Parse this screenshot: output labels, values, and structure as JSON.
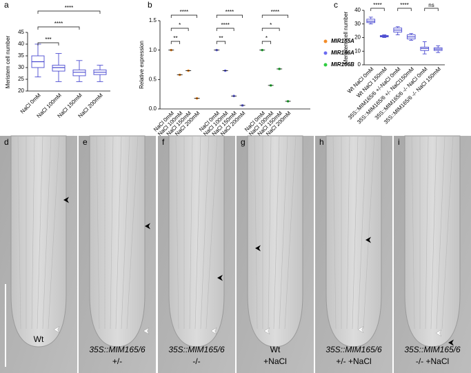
{
  "chart_data": [
    {
      "type": "box",
      "panel_label": "a",
      "ylabel": "Meristem cell number",
      "categories": [
        "NaCl 0mM",
        "NaCl 100mM",
        "NaCl 150mM",
        "NaCl 200mM"
      ],
      "color": "#4a4ad0",
      "min": [
        26,
        24,
        24,
        24
      ],
      "q1": [
        30,
        28.5,
        26.5,
        27
      ],
      "median": [
        32.5,
        30,
        28,
        28
      ],
      "q3": [
        35,
        31,
        29,
        29
      ],
      "max": [
        40,
        36,
        33,
        31
      ],
      "ylim": [
        20,
        45
      ],
      "yticks": [
        20,
        25,
        30,
        35,
        40,
        45
      ],
      "annotations": [
        {
          "from": 0,
          "to": 1,
          "text": "***"
        },
        {
          "from": 0,
          "to": 2,
          "text": "****"
        },
        {
          "from": 0,
          "to": 3,
          "text": "****"
        }
      ]
    },
    {
      "type": "dot",
      "panel_label": "b",
      "ylabel": "Relative expression",
      "categories": [
        "NaCl 0mM",
        "NaCl 100mM",
        "NaCl 150mM",
        "NaCl 200mM"
      ],
      "ylim": [
        0,
        1.5
      ],
      "yticks": [
        {
          "value": 0,
          "label": "0.0"
        },
        {
          "value": 0.5,
          "label": "0.5"
        },
        {
          "value": 1,
          "label": "1.0"
        },
        {
          "value": 1.5,
          "label": "1.5"
        }
      ],
      "series": [
        {
          "name": "MIR165A",
          "color": "#f28c28",
          "values": [
            1.0,
            0.58,
            0.65,
            0.18
          ],
          "annotations": [
            {
              "from": 0,
              "to": 1,
              "text": "**"
            },
            {
              "from": 0,
              "to": 2,
              "text": "*"
            },
            {
              "from": 0,
              "to": 3,
              "text": "****"
            }
          ]
        },
        {
          "name": "MIR166A",
          "color": "#6b6bf0",
          "values": [
            1.0,
            0.65,
            0.22,
            0.06
          ],
          "annotations": [
            {
              "from": 0,
              "to": 1,
              "text": "**"
            },
            {
              "from": 0,
              "to": 2,
              "text": "****"
            },
            {
              "from": 0,
              "to": 3,
              "text": "****"
            }
          ]
        },
        {
          "name": "MIR166B",
          "color": "#2ecc40",
          "values": [
            1.0,
            0.4,
            0.68,
            0.13
          ],
          "annotations": [
            {
              "from": 0,
              "to": 1,
              "text": "*"
            },
            {
              "from": 0,
              "to": 2,
              "text": "*"
            },
            {
              "from": 0,
              "to": 3,
              "text": "****"
            }
          ]
        }
      ]
    },
    {
      "type": "box",
      "panel_label": "c",
      "ylabel": "Meristem cell number",
      "categories": [
        "Wt NaCl 0mM",
        "Wt NaCl 150mM",
        "35S::MIM165/6 +/-NaCl 0mM",
        "35S::MIM165/6 +/- NaCl150mM",
        "35S::MIM165/6 -/- NaCl 0mM",
        "35S::MIM165/6 -/- NaCl 150mM"
      ],
      "color": "#4a4ad0",
      "min": [
        30,
        20,
        22,
        18,
        8,
        9
      ],
      "q1": [
        31,
        20.5,
        24,
        19,
        10.5,
        10.5
      ],
      "median": [
        32,
        21,
        25.5,
        20.5,
        12,
        11.5
      ],
      "q3": [
        33.5,
        21.5,
        27,
        22,
        13,
        12.5
      ],
      "max": [
        35,
        22,
        28,
        23,
        17,
        14
      ],
      "ylim": [
        0,
        40
      ],
      "yticks": [
        0,
        10,
        20,
        30,
        40
      ],
      "annotations": [
        {
          "from": 0,
          "to": 1,
          "text": "****"
        },
        {
          "from": 2,
          "to": 3,
          "text": "****"
        },
        {
          "from": 4,
          "to": 5,
          "text": "ns"
        }
      ]
    }
  ],
  "panels": [
    {
      "label": "d",
      "genotype": "Wt",
      "italic": false
    },
    {
      "label": "e",
      "genotype": "35S::MIM165/6",
      "italic": true,
      "condition": "+/-"
    },
    {
      "label": "f",
      "genotype": "35S::MIM165/6",
      "italic": true,
      "condition": "-/-"
    },
    {
      "label": "g",
      "genotype": "Wt",
      "italic": false,
      "condition": "+NaCl"
    },
    {
      "label": "h",
      "genotype": "35S::MIM165/6",
      "italic": true,
      "condition": "+/- +NaCl"
    },
    {
      "label": "i",
      "genotype": "35S::MIM165/6",
      "italic": true,
      "condition": "-/- +NaCl"
    }
  ]
}
